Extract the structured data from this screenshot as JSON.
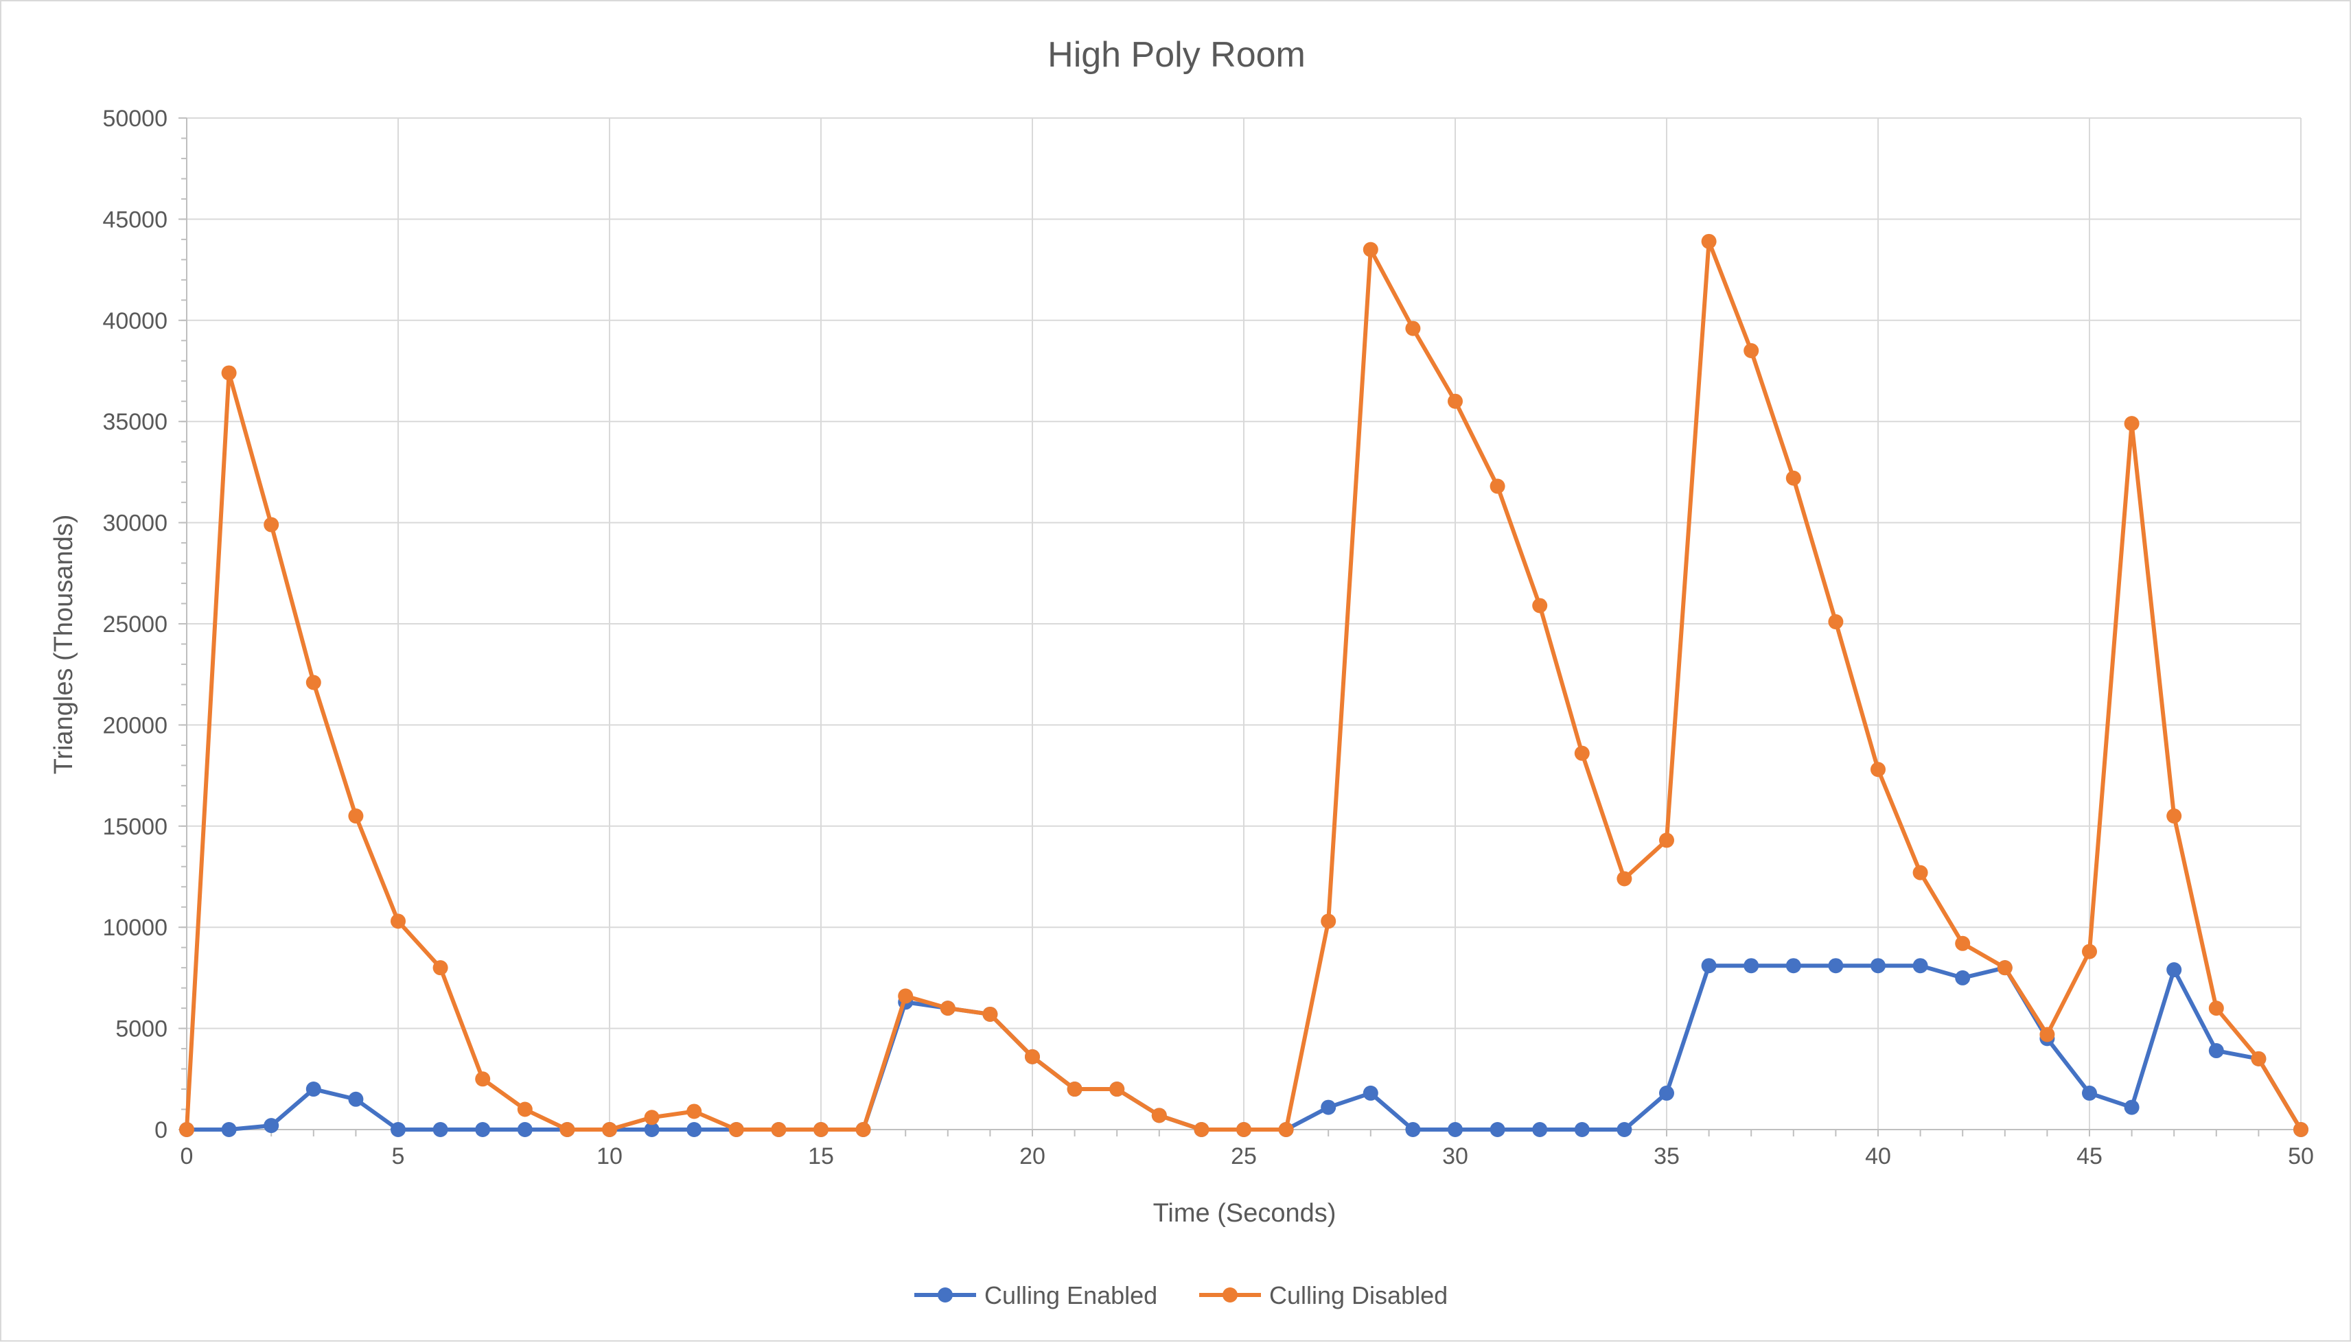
{
  "chart_data": {
    "type": "line",
    "title": "High Poly Room",
    "xlabel": "Time (Seconds)",
    "ylabel": "Triangles (Thousands)",
    "xlim": [
      0,
      50
    ],
    "ylim": [
      0,
      50000
    ],
    "x_ticks": [
      "0",
      "5",
      "10",
      "15",
      "20",
      "25",
      "30",
      "35",
      "40",
      "45",
      "50"
    ],
    "y_ticks": [
      "0",
      "5000",
      "10000",
      "15000",
      "20000",
      "25000",
      "30000",
      "35000",
      "40000",
      "45000",
      "50000"
    ],
    "grid": true,
    "legend_position": "bottom",
    "x": [
      0,
      1,
      2,
      3,
      4,
      5,
      6,
      7,
      8,
      9,
      10,
      11,
      12,
      13,
      14,
      15,
      16,
      17,
      18,
      19,
      20,
      21,
      22,
      23,
      24,
      25,
      26,
      27,
      28,
      29,
      30,
      31,
      32,
      33,
      34,
      35,
      36,
      37,
      38,
      39,
      40,
      41,
      42,
      43,
      44,
      45,
      46,
      47,
      48,
      49,
      50
    ],
    "series": [
      {
        "name": "Culling Enabled",
        "color": "#4472c4",
        "values": [
          0,
          0,
          200,
          2000,
          1500,
          0,
          0,
          0,
          0,
          0,
          0,
          0,
          0,
          0,
          0,
          0,
          0,
          6300,
          6000,
          5700,
          3600,
          2000,
          2000,
          700,
          0,
          0,
          0,
          1100,
          1800,
          0,
          0,
          0,
          0,
          0,
          0,
          1800,
          8100,
          8100,
          8100,
          8100,
          8100,
          8100,
          7500,
          8000,
          4500,
          1800,
          1100,
          7900,
          3900,
          3500,
          0
        ]
      },
      {
        "name": "Culling Disabled",
        "color": "#ed7d31",
        "values": [
          0,
          37400,
          29900,
          22100,
          15500,
          10300,
          8000,
          2500,
          1000,
          0,
          0,
          600,
          900,
          0,
          0,
          0,
          0,
          6600,
          6000,
          5700,
          3600,
          2000,
          2000,
          700,
          0,
          0,
          0,
          10300,
          43500,
          39600,
          36000,
          31800,
          25900,
          18600,
          12400,
          14300,
          43900,
          38500,
          32200,
          25100,
          17800,
          12700,
          9200,
          8000,
          4700,
          8800,
          34900,
          15500,
          6000,
          3500,
          0
        ]
      }
    ]
  }
}
